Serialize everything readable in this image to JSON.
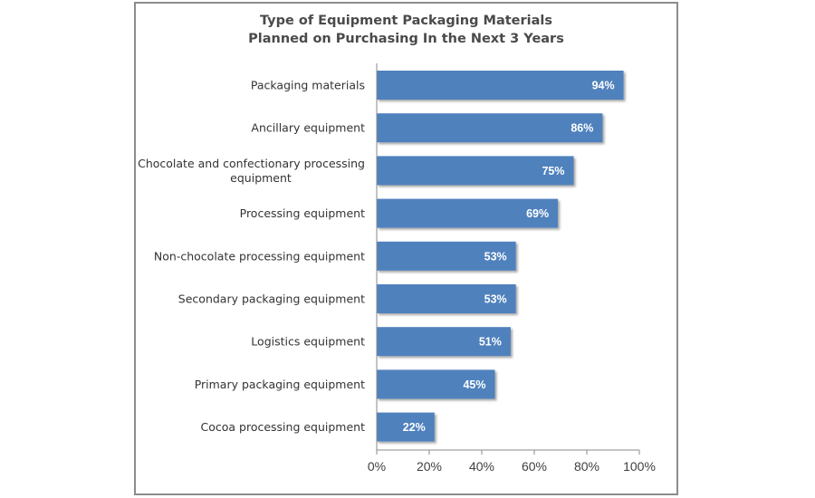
{
  "chart_data": {
    "type": "bar",
    "orientation": "horizontal",
    "title_lines": [
      "Type of Equipment Packaging Materials",
      "Planned on Purchasing In the Next 3 Years"
    ],
    "categories": [
      [
        "Packaging materials"
      ],
      [
        "Ancillary equipment"
      ],
      [
        "Chocolate and confectionary processing",
        "equipment"
      ],
      [
        "Processing equipment"
      ],
      [
        "Non-chocolate processing equipment"
      ],
      [
        "Secondary packaging equipment"
      ],
      [
        "Logistics equipment"
      ],
      [
        "Primary packaging equipment"
      ],
      [
        "Cocoa processing equipment"
      ]
    ],
    "values": [
      94,
      86,
      75,
      69,
      53,
      53,
      51,
      45,
      22
    ],
    "value_labels": [
      "94%",
      "86%",
      "75%",
      "69%",
      "53%",
      "53%",
      "51%",
      "45%",
      "22%"
    ],
    "xlim": [
      0,
      100
    ],
    "x_ticks": [
      0,
      20,
      40,
      60,
      80,
      100
    ],
    "x_tick_labels": [
      "0%",
      "20%",
      "40%",
      "60%",
      "80%",
      "100%"
    ],
    "grid": false,
    "legend": "none",
    "bar_color": "#4f81bd"
  }
}
